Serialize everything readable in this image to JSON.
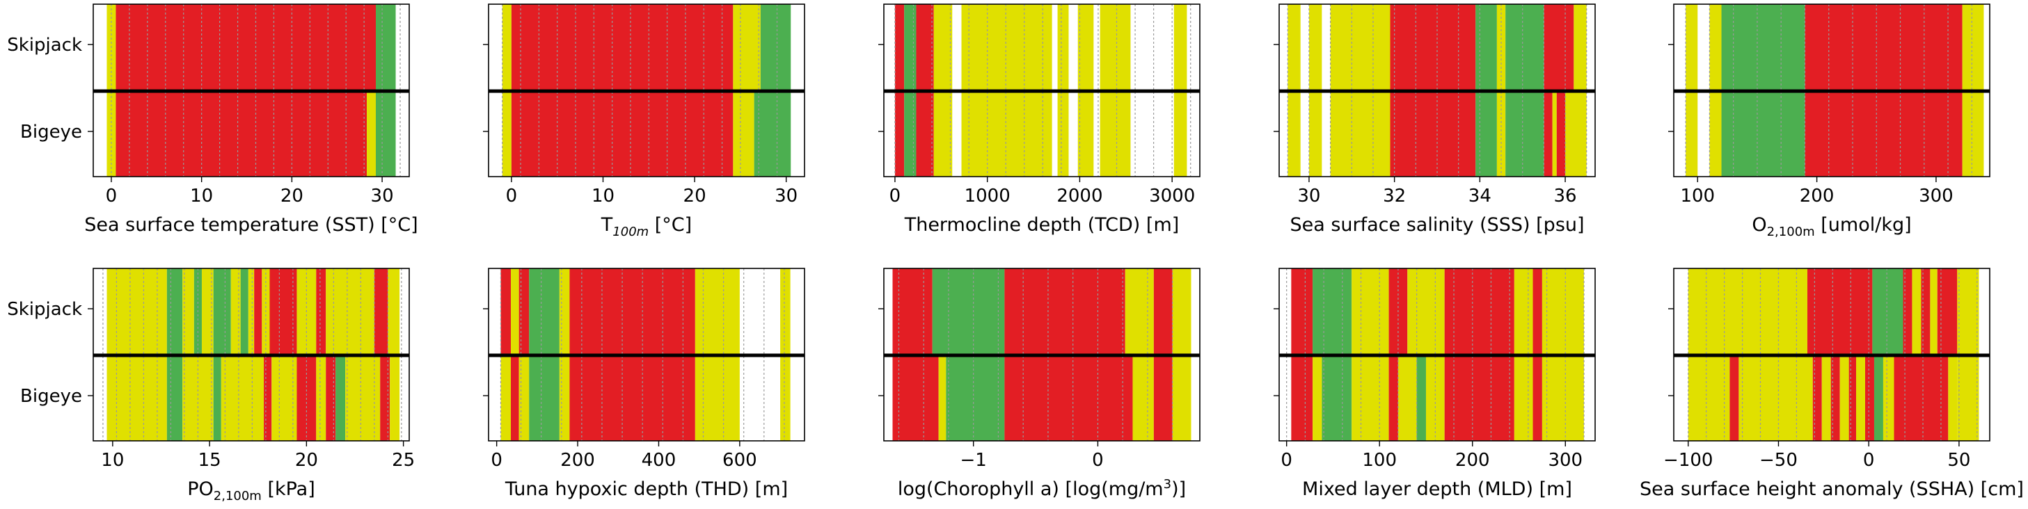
{
  "colors": {
    "green": "#4CAF50",
    "yellow": "#E0E000",
    "red": "#E31E24",
    "frame": "#000000",
    "grid": "#9A9A9A"
  },
  "chart_data": [
    {
      "type": "bar",
      "subtype": "colored-interval-strips",
      "categories": [
        "Skipjack",
        "Bigeye"
      ],
      "xlabel": "Sea surface temperature (SST) [°C]",
      "xlim": [
        -2,
        33
      ],
      "xticks": [
        0,
        10,
        20,
        30
      ],
      "xticklabels": [
        "0",
        "10",
        "20",
        "30"
      ],
      "grid_lines": [
        0,
        2,
        4,
        6,
        8,
        10,
        12,
        14,
        16,
        18,
        20,
        22,
        24,
        26,
        28,
        30,
        32
      ],
      "skipjack": [
        [
          -0.5,
          0.5,
          "yellow"
        ],
        [
          0.5,
          29.3,
          "red"
        ],
        [
          29.3,
          31.5,
          "green"
        ]
      ],
      "bigeye": [
        [
          -0.5,
          0.5,
          "yellow"
        ],
        [
          0.5,
          28.3,
          "red"
        ],
        [
          28.3,
          29.3,
          "yellow"
        ],
        [
          29.3,
          31.5,
          "green"
        ]
      ]
    },
    {
      "type": "bar",
      "subtype": "colored-interval-strips",
      "categories": [
        "Skipjack",
        "Bigeye"
      ],
      "xlabel": "T",
      "xlabel_sub": "100m",
      "xlabel_suffix": " [°C]",
      "xlim": [
        -2.5,
        32
      ],
      "xticks": [
        0,
        10,
        20,
        30
      ],
      "xticklabels": [
        "0",
        "10",
        "20",
        "30"
      ],
      "grid_lines": [
        -1,
        1,
        3,
        5,
        7,
        9,
        11,
        13,
        15,
        17,
        19,
        21,
        23,
        25,
        27,
        29
      ],
      "skipjack": [
        [
          -1,
          0,
          "yellow"
        ],
        [
          0,
          24.2,
          "red"
        ],
        [
          24.2,
          27.2,
          "yellow"
        ],
        [
          27.2,
          30.5,
          "green"
        ]
      ],
      "bigeye": [
        [
          -1,
          0,
          "yellow"
        ],
        [
          0,
          24.2,
          "red"
        ],
        [
          24.2,
          26.5,
          "yellow"
        ],
        [
          26.5,
          30.5,
          "green"
        ]
      ]
    },
    {
      "type": "bar",
      "subtype": "colored-interval-strips",
      "categories": [
        "Skipjack",
        "Bigeye"
      ],
      "xlabel": "Thermocline depth (TCD) [m]",
      "xlim": [
        -120,
        3300
      ],
      "xticks": [
        0,
        1000,
        2000,
        3000
      ],
      "xticklabels": [
        "0",
        "1000",
        "2000",
        "3000"
      ],
      "grid_lines": [
        0,
        200,
        400,
        600,
        800,
        1000,
        1200,
        1400,
        1600,
        1800,
        2000,
        2200,
        2400,
        2600,
        2800,
        3000,
        3200
      ],
      "skipjack": [
        [
          0,
          100,
          "red"
        ],
        [
          100,
          230,
          "green"
        ],
        [
          230,
          420,
          "red"
        ],
        [
          420,
          620,
          "yellow"
        ],
        [
          720,
          1700,
          "yellow"
        ],
        [
          1760,
          1880,
          "yellow"
        ],
        [
          1980,
          2150,
          "yellow"
        ],
        [
          2220,
          2550,
          "yellow"
        ],
        [
          3020,
          3160,
          "yellow"
        ]
      ],
      "bigeye": [
        [
          0,
          100,
          "red"
        ],
        [
          100,
          230,
          "green"
        ],
        [
          230,
          420,
          "red"
        ],
        [
          420,
          620,
          "yellow"
        ],
        [
          720,
          1700,
          "yellow"
        ],
        [
          1760,
          1880,
          "yellow"
        ],
        [
          1980,
          2150,
          "yellow"
        ],
        [
          2220,
          2550,
          "yellow"
        ],
        [
          3020,
          3160,
          "yellow"
        ]
      ]
    },
    {
      "type": "bar",
      "subtype": "colored-interval-strips",
      "categories": [
        "Skipjack",
        "Bigeye"
      ],
      "xlabel": "Sea surface salinity (SSS) [psu]",
      "xlim": [
        29.3,
        36.7
      ],
      "xticks": [
        30,
        32,
        34,
        36
      ],
      "xticklabels": [
        "30",
        "32",
        "34",
        "36"
      ],
      "grid_lines": [
        29.5,
        30,
        30.5,
        31,
        31.5,
        32,
        32.5,
        33,
        33.5,
        34,
        34.5,
        35,
        35.5,
        36,
        36.5
      ],
      "skipjack": [
        [
          29.5,
          29.8,
          "yellow"
        ],
        [
          30,
          30.3,
          "yellow"
        ],
        [
          30.5,
          31.9,
          "yellow"
        ],
        [
          31.9,
          33.9,
          "red"
        ],
        [
          33.9,
          34.4,
          "green"
        ],
        [
          34.4,
          34.6,
          "yellow"
        ],
        [
          34.6,
          35.5,
          "green"
        ],
        [
          35.5,
          36.2,
          "red"
        ],
        [
          36.2,
          36.5,
          "yellow"
        ]
      ],
      "bigeye": [
        [
          29.5,
          29.8,
          "yellow"
        ],
        [
          30,
          30.3,
          "yellow"
        ],
        [
          30.5,
          31.9,
          "yellow"
        ],
        [
          31.9,
          33.9,
          "red"
        ],
        [
          33.9,
          34.4,
          "green"
        ],
        [
          34.4,
          34.6,
          "yellow"
        ],
        [
          34.6,
          35.5,
          "green"
        ],
        [
          35.5,
          35.7,
          "red"
        ],
        [
          35.7,
          35.8,
          "yellow"
        ],
        [
          35.8,
          36.0,
          "red"
        ],
        [
          36.0,
          36.5,
          "yellow"
        ]
      ]
    },
    {
      "type": "bar",
      "subtype": "colored-interval-strips",
      "categories": [
        "Skipjack",
        "Bigeye"
      ],
      "xlabel": "O",
      "xlabel_sub": "2,100m",
      "xlabel_suffix": " [umol/kg]",
      "xlim": [
        80,
        345
      ],
      "xticks": [
        100,
        200,
        300
      ],
      "xticklabels": [
        "100",
        "200",
        "300"
      ],
      "grid_lines": [
        90,
        110,
        130,
        150,
        170,
        190,
        210,
        230,
        250,
        270,
        290,
        310,
        330
      ],
      "skipjack": [
        [
          90,
          100,
          "yellow"
        ],
        [
          110,
          120,
          "yellow"
        ],
        [
          120,
          190,
          "green"
        ],
        [
          190,
          322,
          "red"
        ],
        [
          322,
          340,
          "yellow"
        ]
      ],
      "bigeye": [
        [
          90,
          100,
          "yellow"
        ],
        [
          110,
          120,
          "yellow"
        ],
        [
          120,
          190,
          "green"
        ],
        [
          190,
          322,
          "red"
        ],
        [
          322,
          340,
          "yellow"
        ]
      ]
    },
    {
      "type": "bar",
      "subtype": "colored-interval-strips",
      "categories": [
        "Skipjack",
        "Bigeye"
      ],
      "xlabel": "PO",
      "xlabel_sub": "2,100m",
      "xlabel_suffix": " [kPa]",
      "xlim": [
        9,
        25.3
      ],
      "xticks": [
        10,
        15,
        20,
        25
      ],
      "xticklabels": [
        "10",
        "15",
        "20",
        "25"
      ],
      "grid_lines": [
        9.5,
        10.2,
        10.9,
        11.6,
        12.3,
        13.0,
        13.7,
        14.4,
        15.1,
        15.8,
        16.5,
        17.2,
        17.9,
        18.6,
        19.3,
        20.0,
        20.7,
        21.4,
        22.1,
        22.8,
        23.5,
        24.2,
        24.9
      ],
      "skipjack": [
        [
          9.7,
          12.8,
          "yellow"
        ],
        [
          12.8,
          13.6,
          "green"
        ],
        [
          13.6,
          14.2,
          "yellow"
        ],
        [
          14.2,
          14.6,
          "green"
        ],
        [
          14.6,
          15.2,
          "yellow"
        ],
        [
          15.2,
          16.1,
          "green"
        ],
        [
          16.1,
          16.6,
          "yellow"
        ],
        [
          16.6,
          17.0,
          "green"
        ],
        [
          17.0,
          17.3,
          "yellow"
        ],
        [
          17.3,
          17.7,
          "red"
        ],
        [
          17.7,
          18.1,
          "yellow"
        ],
        [
          18.1,
          19.5,
          "red"
        ],
        [
          19.5,
          20.5,
          "yellow"
        ],
        [
          20.5,
          21.0,
          "red"
        ],
        [
          21.0,
          23.5,
          "yellow"
        ],
        [
          23.5,
          24.2,
          "red"
        ],
        [
          24.2,
          24.8,
          "yellow"
        ]
      ],
      "bigeye": [
        [
          9.7,
          12.8,
          "yellow"
        ],
        [
          12.8,
          13.6,
          "green"
        ],
        [
          13.6,
          15.2,
          "yellow"
        ],
        [
          15.2,
          15.6,
          "green"
        ],
        [
          15.6,
          17.8,
          "yellow"
        ],
        [
          17.8,
          18.2,
          "red"
        ],
        [
          18.2,
          19.5,
          "yellow"
        ],
        [
          19.5,
          20.5,
          "red"
        ],
        [
          20.5,
          21.0,
          "yellow"
        ],
        [
          21.0,
          21.5,
          "red"
        ],
        [
          21.5,
          22.0,
          "green"
        ],
        [
          22.0,
          23.8,
          "yellow"
        ],
        [
          23.8,
          24.3,
          "red"
        ],
        [
          24.3,
          24.8,
          "yellow"
        ]
      ]
    },
    {
      "type": "bar",
      "subtype": "colored-interval-strips",
      "categories": [
        "Skipjack",
        "Bigeye"
      ],
      "xlabel": "Tuna hypoxic depth (THD) [m]",
      "xlim": [
        -20,
        760
      ],
      "xticks": [
        0,
        200,
        400,
        600
      ],
      "xticklabels": [
        "0",
        "200",
        "400",
        "600"
      ],
      "grid_lines": [
        10,
        60,
        110,
        160,
        210,
        260,
        310,
        360,
        410,
        460,
        510,
        560,
        610,
        660,
        710
      ],
      "skipjack": [
        [
          10,
          35,
          "red"
        ],
        [
          35,
          55,
          "yellow"
        ],
        [
          55,
          80,
          "red"
        ],
        [
          80,
          155,
          "green"
        ],
        [
          155,
          180,
          "yellow"
        ],
        [
          180,
          490,
          "red"
        ],
        [
          490,
          600,
          "yellow"
        ],
        [
          700,
          725,
          "yellow"
        ]
      ],
      "bigeye": [
        [
          10,
          35,
          "yellow"
        ],
        [
          35,
          55,
          "red"
        ],
        [
          55,
          80,
          "yellow"
        ],
        [
          80,
          155,
          "green"
        ],
        [
          155,
          180,
          "yellow"
        ],
        [
          180,
          490,
          "red"
        ],
        [
          490,
          600,
          "yellow"
        ],
        [
          700,
          725,
          "yellow"
        ]
      ]
    },
    {
      "type": "bar",
      "subtype": "colored-interval-strips",
      "categories": [
        "Skipjack",
        "Bigeye"
      ],
      "xlabel": "log(Chorophyll a) [log(mg/m",
      "xlabel_sup": "3",
      "xlabel_suffix": ")]",
      "xlim": [
        -1.72,
        0.82
      ],
      "xticks": [
        -1,
        0
      ],
      "xticklabels": [
        "−1",
        "0"
      ],
      "grid_lines": [
        -1.6,
        -1.4,
        -1.2,
        -1.0,
        -0.8,
        -0.6,
        -0.4,
        -0.2,
        0,
        0.2,
        0.4,
        0.6
      ],
      "skipjack": [
        [
          -1.65,
          -1.33,
          "red"
        ],
        [
          -1.33,
          -0.75,
          "green"
        ],
        [
          -0.75,
          0.22,
          "red"
        ],
        [
          0.22,
          0.45,
          "yellow"
        ],
        [
          0.45,
          0.6,
          "red"
        ],
        [
          0.6,
          0.75,
          "yellow"
        ]
      ],
      "bigeye": [
        [
          -1.65,
          -1.28,
          "red"
        ],
        [
          -1.28,
          -1.22,
          "yellow"
        ],
        [
          -1.22,
          -0.75,
          "green"
        ],
        [
          -0.75,
          0.28,
          "red"
        ],
        [
          0.28,
          0.45,
          "yellow"
        ],
        [
          0.45,
          0.6,
          "red"
        ],
        [
          0.6,
          0.75,
          "yellow"
        ]
      ]
    },
    {
      "type": "bar",
      "subtype": "colored-interval-strips",
      "categories": [
        "Skipjack",
        "Bigeye"
      ],
      "xlabel": "Mixed layer depth (MLD) [m]",
      "xlim": [
        -8,
        332
      ],
      "xticks": [
        0,
        100,
        200,
        300
      ],
      "xticklabels": [
        "0",
        "100",
        "200",
        "300"
      ],
      "grid_lines": [
        0,
        20,
        40,
        60,
        80,
        100,
        120,
        140,
        160,
        180,
        200,
        220,
        240,
        260,
        280,
        300,
        320
      ],
      "skipjack": [
        [
          5,
          28,
          "red"
        ],
        [
          28,
          70,
          "green"
        ],
        [
          70,
          110,
          "yellow"
        ],
        [
          110,
          130,
          "red"
        ],
        [
          130,
          170,
          "yellow"
        ],
        [
          170,
          245,
          "red"
        ],
        [
          245,
          265,
          "yellow"
        ],
        [
          265,
          275,
          "red"
        ],
        [
          275,
          320,
          "yellow"
        ]
      ],
      "bigeye": [
        [
          5,
          28,
          "red"
        ],
        [
          28,
          38,
          "yellow"
        ],
        [
          38,
          70,
          "green"
        ],
        [
          70,
          110,
          "yellow"
        ],
        [
          110,
          120,
          "red"
        ],
        [
          120,
          140,
          "yellow"
        ],
        [
          140,
          150,
          "green"
        ],
        [
          150,
          170,
          "yellow"
        ],
        [
          170,
          245,
          "red"
        ],
        [
          245,
          265,
          "yellow"
        ],
        [
          265,
          275,
          "red"
        ],
        [
          275,
          320,
          "yellow"
        ]
      ]
    },
    {
      "type": "bar",
      "subtype": "colored-interval-strips",
      "categories": [
        "Skipjack",
        "Bigeye"
      ],
      "xlabel": "Sea surface height anomaly (SSHA) [cm]",
      "xlim": [
        -108,
        67
      ],
      "xticks": [
        -100,
        -50,
        0,
        50
      ],
      "xticklabels": [
        "−100",
        "−50",
        "0",
        "50"
      ],
      "grid_lines": [
        -100,
        -90,
        -80,
        -70,
        -60,
        -50,
        -40,
        -30,
        -20,
        -10,
        0,
        10,
        20,
        30,
        40,
        50,
        60
      ],
      "skipjack": [
        [
          -100,
          -34,
          "yellow"
        ],
        [
          -34,
          2,
          "red"
        ],
        [
          2,
          19,
          "green"
        ],
        [
          19,
          24,
          "red"
        ],
        [
          24,
          29,
          "yellow"
        ],
        [
          29,
          34,
          "red"
        ],
        [
          34,
          38,
          "yellow"
        ],
        [
          38,
          49,
          "red"
        ],
        [
          49,
          61,
          "yellow"
        ]
      ],
      "bigeye": [
        [
          -100,
          -77,
          "yellow"
        ],
        [
          -77,
          -72,
          "red"
        ],
        [
          -72,
          -31,
          "yellow"
        ],
        [
          -31,
          -26,
          "red"
        ],
        [
          -26,
          -21,
          "yellow"
        ],
        [
          -21,
          -16,
          "red"
        ],
        [
          -16,
          -11,
          "yellow"
        ],
        [
          -11,
          -7,
          "red"
        ],
        [
          -7,
          -2,
          "yellow"
        ],
        [
          -2,
          3,
          "red"
        ],
        [
          3,
          8,
          "green"
        ],
        [
          8,
          14,
          "yellow"
        ],
        [
          14,
          44,
          "red"
        ],
        [
          44,
          49,
          "yellow"
        ],
        [
          49,
          61,
          "yellow"
        ]
      ]
    }
  ]
}
